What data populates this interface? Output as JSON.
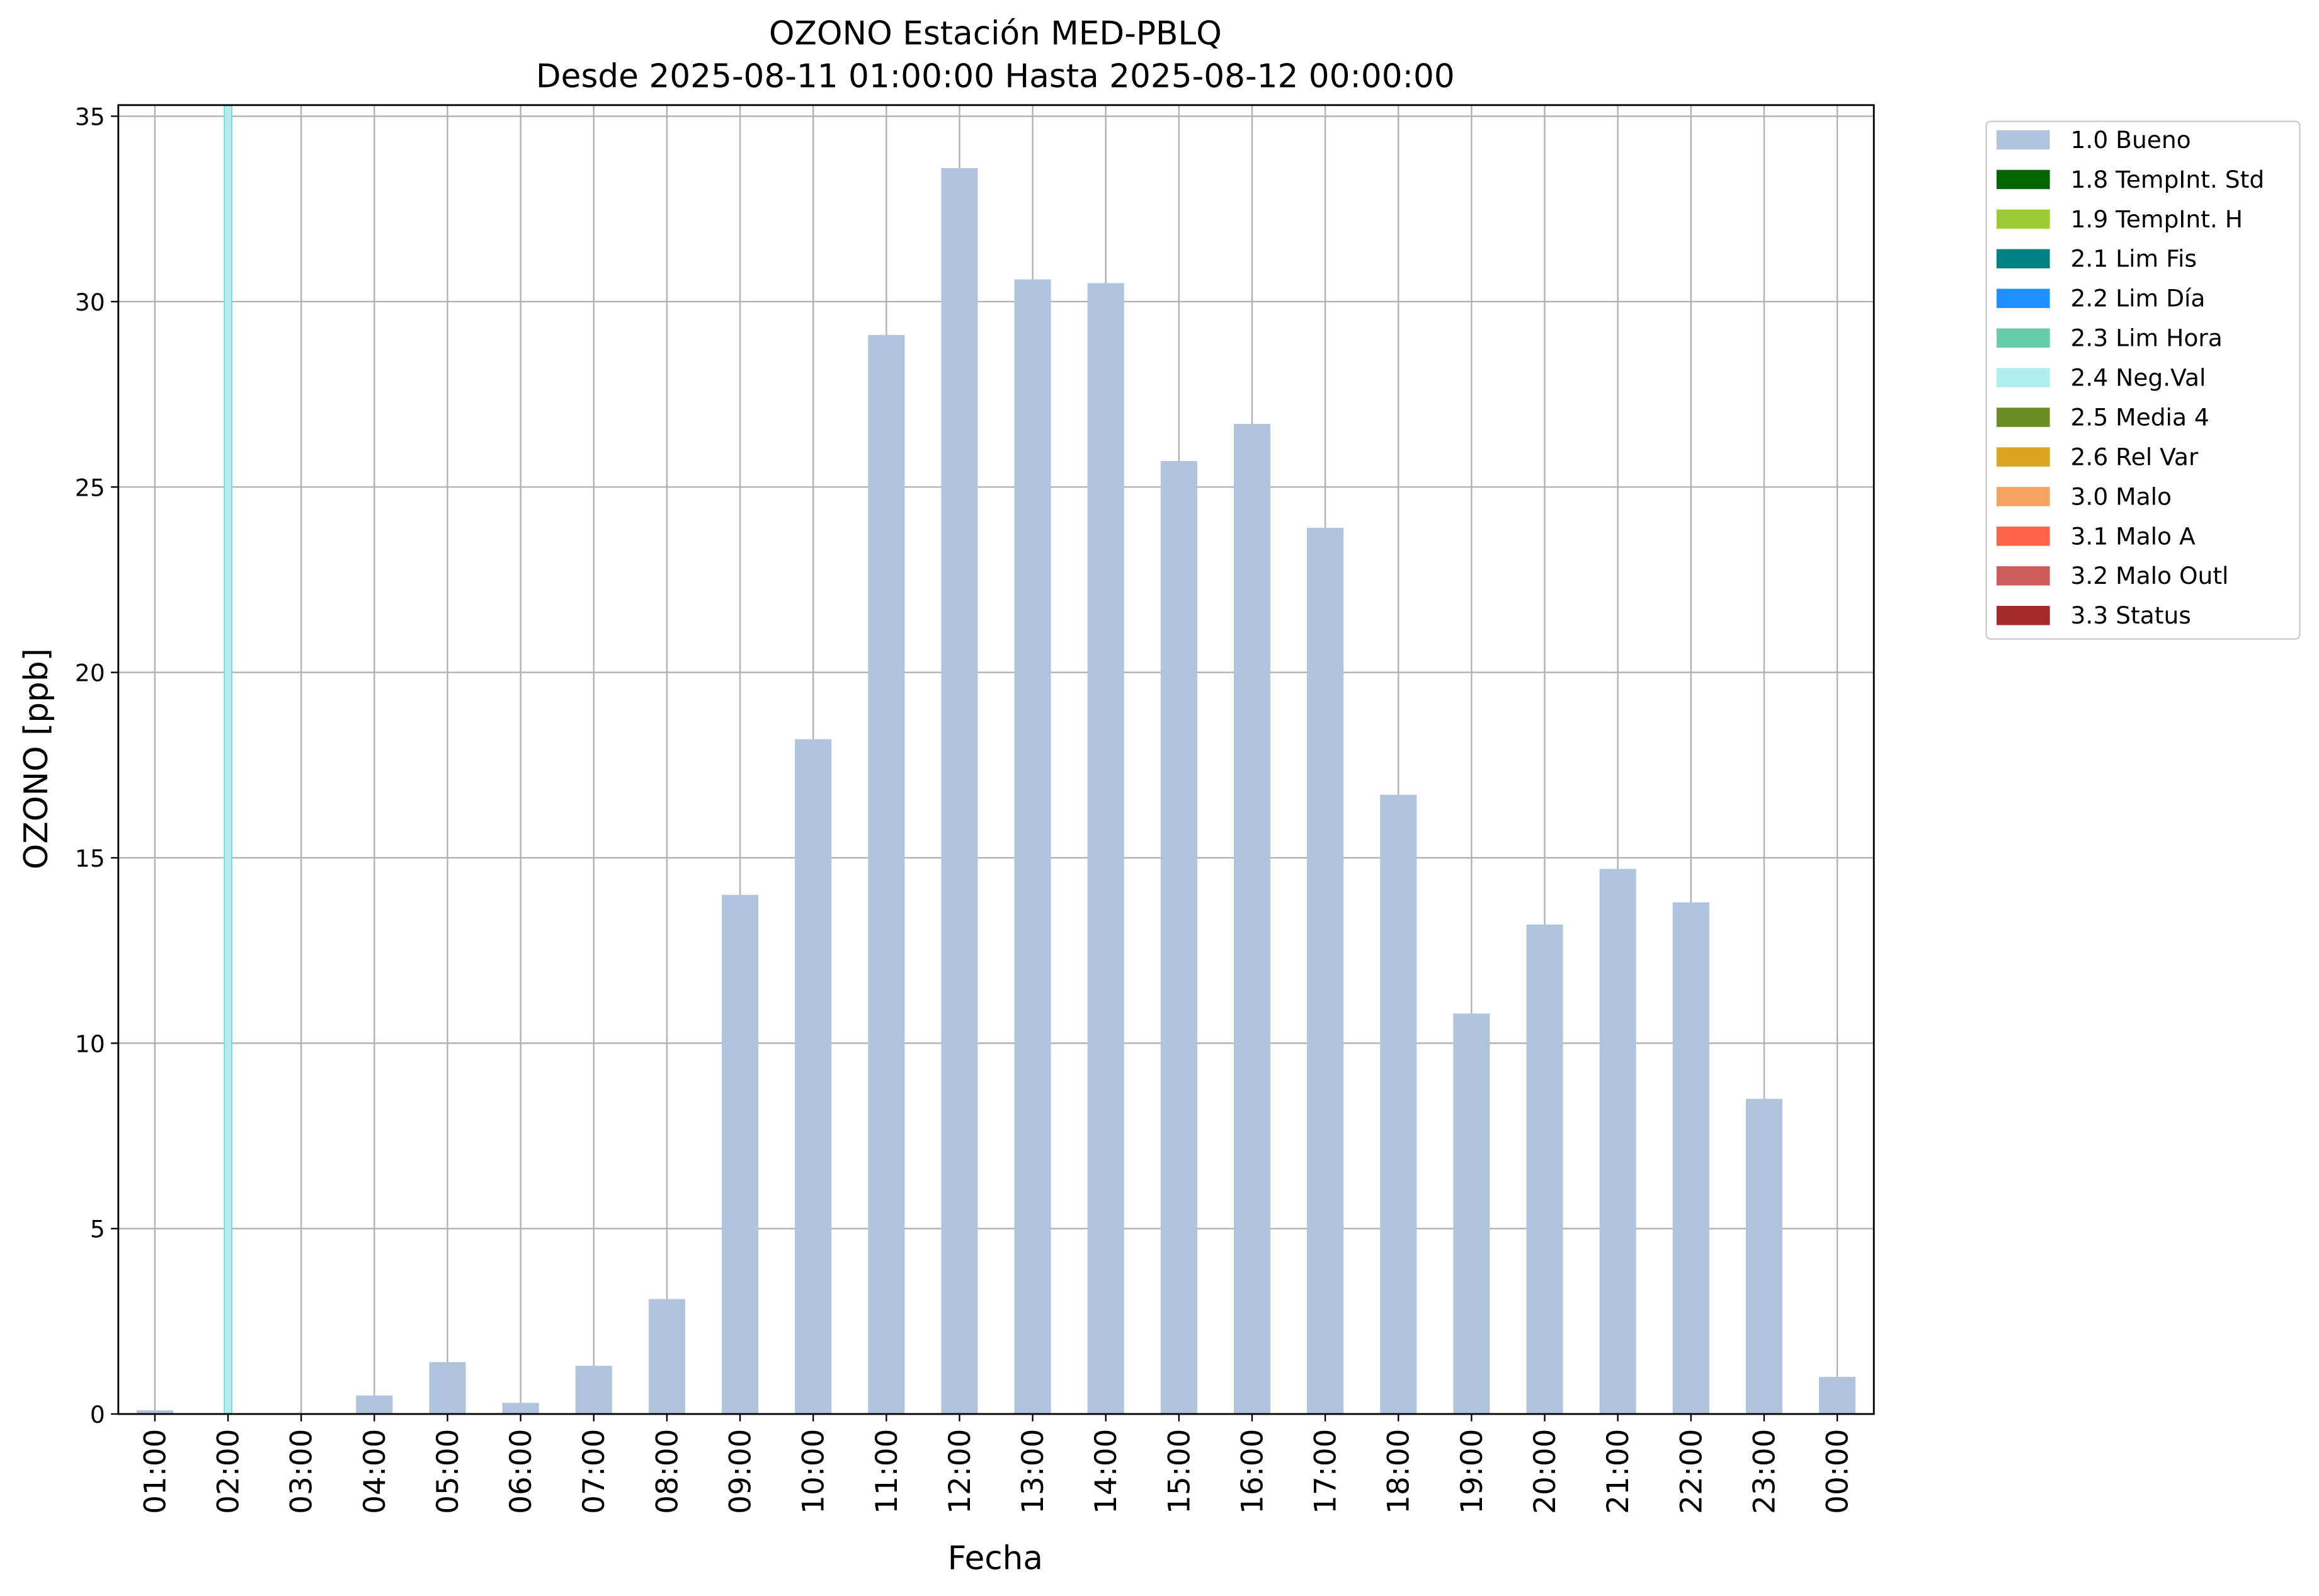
{
  "chart_data": {
    "type": "bar",
    "title": "OZONO Estación MED-PBLQ",
    "subtitle": "Desde 2025-08-11 01:00:00 Hasta 2025-08-12 00:00:00",
    "x_label": "Fecha",
    "y_label": "OZONO [ppb]",
    "categories": [
      "01:00",
      "02:00",
      "03:00",
      "04:00",
      "05:00",
      "06:00",
      "07:00",
      "08:00",
      "09:00",
      "10:00",
      "11:00",
      "12:00",
      "13:00",
      "14:00",
      "15:00",
      "16:00",
      "17:00",
      "18:00",
      "19:00",
      "20:00",
      "21:00",
      "22:00",
      "23:00",
      "00:00"
    ],
    "series": [
      {
        "name": "1.0 Bueno",
        "color": "#b0c4de",
        "values": [
          0.1,
          null,
          null,
          0.5,
          1.4,
          0.3,
          1.3,
          3.1,
          14.0,
          18.2,
          29.1,
          33.6,
          30.6,
          30.5,
          25.7,
          26.7,
          23.9,
          16.7,
          10.8,
          13.2,
          14.7,
          13.8,
          8.5,
          1.0
        ]
      },
      {
        "name": "1.8 TempInt. Std",
        "color": "#006400",
        "mark": "span",
        "values": [
          null,
          null,
          null,
          null,
          null,
          null,
          null,
          null,
          null,
          null,
          null,
          null,
          null,
          null,
          null,
          null,
          null,
          null,
          null,
          null,
          null,
          null,
          null,
          null
        ]
      },
      {
        "name": "1.9 TempInt. H",
        "color": "#9acd32",
        "mark": "span",
        "values": [
          null,
          null,
          null,
          null,
          null,
          null,
          null,
          null,
          null,
          null,
          null,
          null,
          null,
          null,
          null,
          null,
          null,
          null,
          null,
          null,
          null,
          null,
          null,
          null
        ]
      },
      {
        "name": "2.1 Lim Fis",
        "color": "#008080",
        "mark": "span",
        "values": [
          null,
          null,
          null,
          null,
          null,
          null,
          null,
          null,
          null,
          null,
          null,
          null,
          null,
          null,
          null,
          null,
          null,
          null,
          null,
          null,
          null,
          null,
          null,
          null
        ]
      },
      {
        "name": "2.2 Lim Día",
        "color": "#1e90ff",
        "mark": "span",
        "values": [
          null,
          null,
          null,
          null,
          null,
          null,
          null,
          null,
          null,
          null,
          null,
          null,
          null,
          null,
          null,
          null,
          null,
          null,
          null,
          null,
          null,
          null,
          null,
          null
        ]
      },
      {
        "name": "2.3 Lim Hora",
        "color": "#66cdaa",
        "mark": "span",
        "values": [
          null,
          null,
          null,
          null,
          null,
          null,
          null,
          null,
          null,
          null,
          null,
          null,
          null,
          null,
          null,
          null,
          null,
          null,
          null,
          null,
          null,
          null,
          null,
          null
        ]
      },
      {
        "name": "2.4 Neg.Val",
        "color": "#afeeee",
        "mark": "span",
        "values": [
          null,
          0,
          null,
          null,
          null,
          null,
          null,
          null,
          null,
          null,
          null,
          null,
          null,
          null,
          null,
          null,
          null,
          null,
          null,
          null,
          null,
          null,
          null,
          null
        ]
      },
      {
        "name": "2.5 Media 4",
        "color": "#6b8e23",
        "mark": "span",
        "values": [
          null,
          null,
          null,
          null,
          null,
          null,
          null,
          null,
          null,
          null,
          null,
          null,
          null,
          null,
          null,
          null,
          null,
          null,
          null,
          null,
          null,
          null,
          null,
          null
        ]
      },
      {
        "name": "2.6 Rel Var",
        "color": "#daa520",
        "mark": "span",
        "values": [
          null,
          null,
          null,
          null,
          null,
          null,
          null,
          null,
          null,
          null,
          null,
          null,
          null,
          null,
          null,
          null,
          null,
          null,
          null,
          null,
          null,
          null,
          null,
          null
        ]
      },
      {
        "name": "3.0 Malo",
        "color": "#f4a460",
        "mark": "span",
        "values": [
          null,
          null,
          null,
          null,
          null,
          null,
          null,
          null,
          null,
          null,
          null,
          null,
          null,
          null,
          null,
          null,
          null,
          null,
          null,
          null,
          null,
          null,
          null,
          null
        ]
      },
      {
        "name": "3.1 Malo A",
        "color": "#ff6347",
        "mark": "span",
        "values": [
          null,
          null,
          null,
          null,
          null,
          null,
          null,
          null,
          null,
          null,
          null,
          null,
          null,
          null,
          null,
          null,
          null,
          null,
          null,
          null,
          null,
          null,
          null,
          null
        ]
      },
      {
        "name": "3.2 Malo Outl",
        "color": "#cd5c5c",
        "mark": "span",
        "values": [
          null,
          null,
          null,
          null,
          null,
          null,
          null,
          null,
          null,
          null,
          null,
          null,
          null,
          null,
          null,
          null,
          null,
          null,
          null,
          null,
          null,
          null,
          null,
          null
        ]
      },
      {
        "name": "3.3 Status",
        "color": "#a52a2a",
        "mark": "span",
        "values": [
          null,
          null,
          null,
          null,
          null,
          null,
          null,
          null,
          null,
          null,
          null,
          null,
          null,
          null,
          null,
          null,
          null,
          null,
          null,
          null,
          null,
          null,
          null,
          null
        ]
      }
    ],
    "ylim": [
      0,
      35.3
    ],
    "yticks": [
      0,
      5,
      10,
      15,
      20,
      25,
      30,
      35
    ],
    "grid": true,
    "legend": "outside-right"
  }
}
